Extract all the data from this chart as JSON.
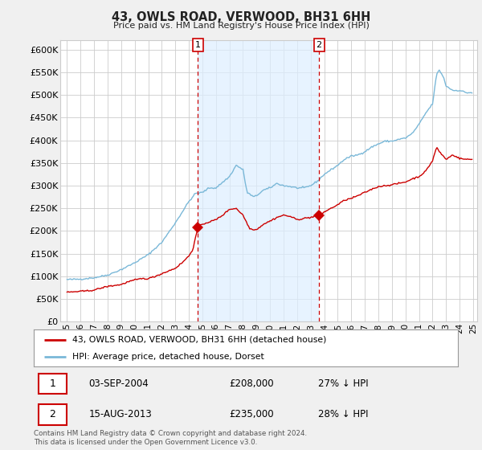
{
  "title": "43, OWLS ROAD, VERWOOD, BH31 6HH",
  "subtitle": "Price paid vs. HM Land Registry's House Price Index (HPI)",
  "ytick_values": [
    0,
    50000,
    100000,
    150000,
    200000,
    250000,
    300000,
    350000,
    400000,
    450000,
    500000,
    550000,
    600000
  ],
  "ylim": [
    0,
    620000
  ],
  "hpi_color": "#7ab8d8",
  "hpi_fill": "#ddeeff",
  "price_color": "#cc0000",
  "marker1_year": 2004.67,
  "marker2_year": 2013.62,
  "marker1_price": 208000,
  "marker2_price": 235000,
  "legend_label1": "43, OWLS ROAD, VERWOOD, BH31 6HH (detached house)",
  "legend_label2": "HPI: Average price, detached house, Dorset",
  "table_row1_num": "1",
  "table_row1_date": "03-SEP-2004",
  "table_row1_price": "£208,000",
  "table_row1_hpi": "27% ↓ HPI",
  "table_row2_num": "2",
  "table_row2_date": "15-AUG-2013",
  "table_row2_price": "£235,000",
  "table_row2_hpi": "28% ↓ HPI",
  "footer": "Contains HM Land Registry data © Crown copyright and database right 2024.\nThis data is licensed under the Open Government Licence v3.0.",
  "fig_bg": "#f0f0f0",
  "plot_bg": "#ffffff",
  "xstart": 1995,
  "xend": 2025
}
